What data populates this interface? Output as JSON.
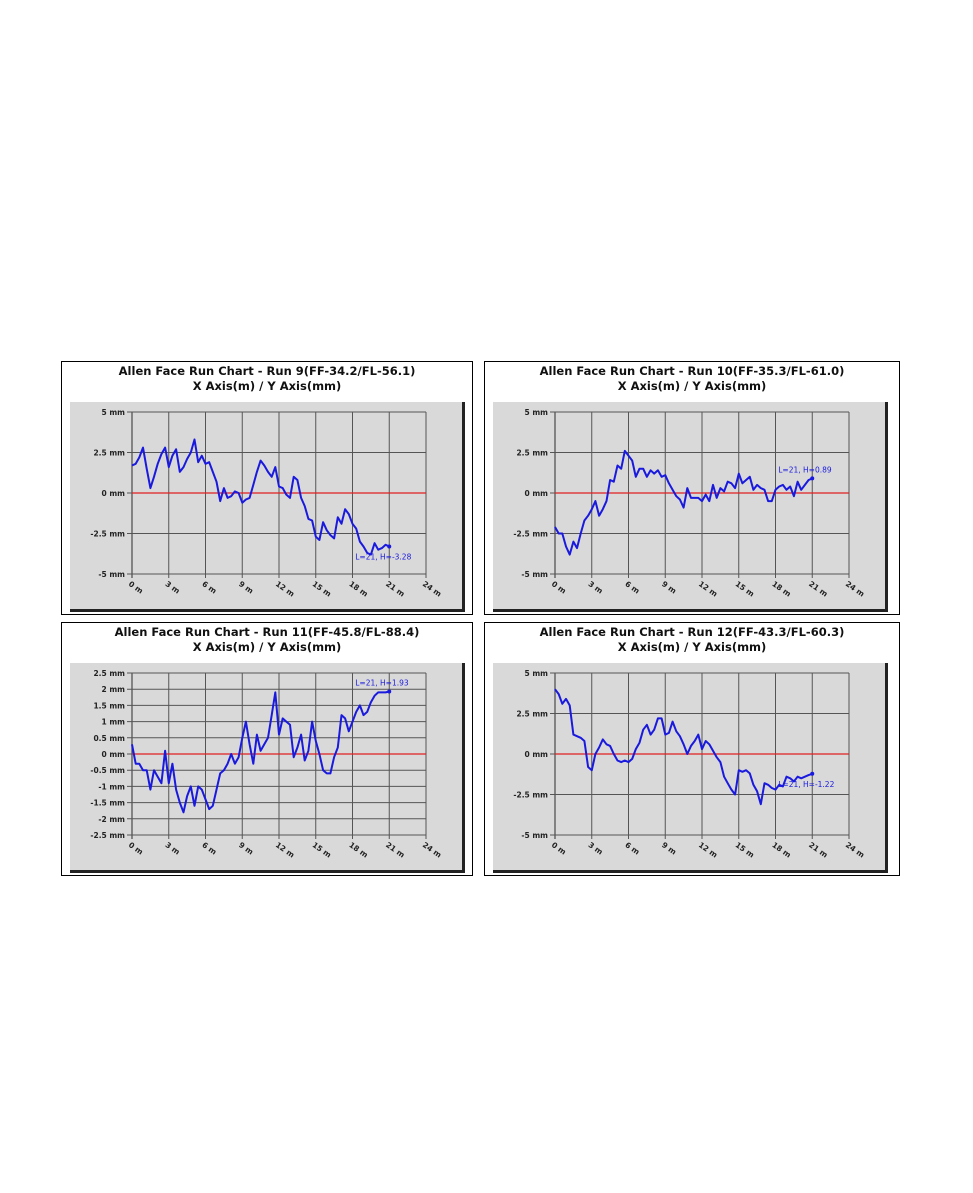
{
  "colors": {
    "series": "#1a1adf",
    "zero_line": "#e02020",
    "grid": "#555555",
    "plot_bg": "#d9d9d9"
  },
  "charts": [
    {
      "title_line1": "Allen Face Run Chart - Run 9(FF-34.2/FL-56.1)",
      "title_line2": "X Axis(m) / Y Axis(mm)"
    },
    {
      "title_line1": "Allen Face Run Chart - Run 10(FF-35.3/FL-61.0)",
      "title_line2": "X Axis(m) / Y Axis(mm)"
    },
    {
      "title_line1": "Allen Face Run Chart - Run 11(FF-45.8/FL-88.4)",
      "title_line2": "X Axis(m) / Y Axis(mm)"
    },
    {
      "title_line1": "Allen Face Run Chart - Run 12(FF-43.3/FL-60.3)",
      "title_line2": "X Axis(m) / Y Axis(mm)"
    }
  ],
  "chart_data": [
    {
      "type": "line",
      "title": "Allen Face Run Chart - Run 9(FF-34.2/FL-56.1)",
      "subtitle": "X Axis(m) / Y Axis(mm)",
      "xlim": [
        0,
        24
      ],
      "ylim": [
        -5,
        5
      ],
      "x_ticks": [
        "0 m",
        "3 m",
        "6 m",
        "9 m",
        "12 m",
        "15 m",
        "18 m",
        "21 m",
        "24 m"
      ],
      "y_ticks": [
        "5 mm",
        "2.5 mm",
        "0 mm",
        "-2.5 mm",
        "-5 mm"
      ],
      "annotation": "L=21, H=-3.28",
      "zero_line": 0,
      "series": [
        {
          "x": [
            0,
            0.3,
            0.6,
            0.9,
            1.2,
            1.5,
            1.8,
            2.1,
            2.4,
            2.7,
            3.0,
            3.3,
            3.6,
            3.9,
            4.2,
            4.5,
            4.8,
            5.1,
            5.4,
            5.7,
            6.0,
            6.3,
            6.6,
            6.9,
            7.2,
            7.5,
            7.8,
            8.1,
            8.4,
            8.7,
            9.0,
            9.3,
            9.6,
            9.9,
            10.2,
            10.5,
            10.8,
            11.1,
            11.4,
            11.7,
            12.0,
            12.3,
            12.6,
            12.9,
            13.2,
            13.5,
            13.8,
            14.1,
            14.4,
            14.7,
            15.0,
            15.3,
            15.6,
            15.9,
            16.2,
            16.5,
            16.8,
            17.1,
            17.4,
            17.7,
            18.0,
            18.3,
            18.6,
            18.9,
            19.2,
            19.5,
            19.8,
            20.1,
            20.4,
            20.7,
            21.0
          ],
          "y": [
            1.7,
            1.8,
            2.2,
            2.8,
            1.5,
            0.3,
            1.0,
            1.8,
            2.4,
            2.8,
            1.6,
            2.3,
            2.7,
            1.3,
            1.6,
            2.1,
            2.5,
            3.3,
            1.9,
            2.3,
            1.8,
            1.9,
            1.3,
            0.7,
            -0.5,
            0.3,
            -0.3,
            -0.2,
            0.1,
            0.0,
            -0.6,
            -0.4,
            -0.3,
            0.5,
            1.3,
            2.0,
            1.7,
            1.3,
            1.0,
            1.6,
            0.4,
            0.3,
            -0.1,
            -0.3,
            1.0,
            0.8,
            -0.3,
            -0.8,
            -1.6,
            -1.7,
            -2.7,
            -2.9,
            -1.8,
            -2.3,
            -2.6,
            -2.8,
            -1.5,
            -1.9,
            -1.0,
            -1.3,
            -1.9,
            -2.2,
            -3.0,
            -3.3,
            -3.7,
            -3.8,
            -3.1,
            -3.5,
            -3.4,
            -3.2,
            -3.3
          ]
        }
      ]
    },
    {
      "type": "line",
      "title": "Allen Face Run Chart - Run 10(FF-35.3/FL-61.0)",
      "subtitle": "X Axis(m) / Y Axis(mm)",
      "xlim": [
        0,
        24
      ],
      "ylim": [
        -5,
        5
      ],
      "x_ticks": [
        "0 m",
        "3 m",
        "6 m",
        "9 m",
        "12 m",
        "15 m",
        "18 m",
        "21 m",
        "24 m"
      ],
      "y_ticks": [
        "5 mm",
        "2.5 mm",
        "0 mm",
        "-2.5 mm",
        "-5 mm"
      ],
      "annotation": "L=21, H=0.89",
      "zero_line": 0,
      "series": [
        {
          "x": [
            0,
            0.3,
            0.6,
            0.9,
            1.2,
            1.5,
            1.8,
            2.1,
            2.4,
            2.7,
            3.0,
            3.3,
            3.6,
            3.9,
            4.2,
            4.5,
            4.8,
            5.1,
            5.4,
            5.7,
            6.0,
            6.3,
            6.6,
            6.9,
            7.2,
            7.5,
            7.8,
            8.1,
            8.4,
            8.7,
            9.0,
            9.3,
            9.6,
            9.9,
            10.2,
            10.5,
            10.8,
            11.1,
            11.4,
            11.7,
            12.0,
            12.3,
            12.6,
            12.9,
            13.2,
            13.5,
            13.8,
            14.1,
            14.4,
            14.7,
            15.0,
            15.3,
            15.6,
            15.9,
            16.2,
            16.5,
            16.8,
            17.1,
            17.4,
            17.7,
            18.0,
            18.3,
            18.6,
            18.9,
            19.2,
            19.5,
            19.8,
            20.1,
            20.4,
            20.7,
            21.0
          ],
          "y": [
            -2.1,
            -2.5,
            -2.5,
            -3.3,
            -3.8,
            -3.0,
            -3.4,
            -2.5,
            -1.7,
            -1.4,
            -1.0,
            -0.5,
            -1.4,
            -1.0,
            -0.5,
            0.8,
            0.7,
            1.7,
            1.5,
            2.6,
            2.3,
            2.0,
            1.0,
            1.5,
            1.5,
            1.0,
            1.4,
            1.2,
            1.4,
            1.0,
            1.1,
            0.6,
            0.2,
            -0.2,
            -0.4,
            -0.9,
            0.3,
            -0.3,
            -0.3,
            -0.3,
            -0.5,
            -0.1,
            -0.5,
            0.5,
            -0.3,
            0.3,
            0.1,
            0.7,
            0.6,
            0.3,
            1.2,
            0.6,
            0.8,
            1.0,
            0.2,
            0.5,
            0.3,
            0.2,
            -0.5,
            -0.5,
            0.2,
            0.4,
            0.5,
            0.2,
            0.4,
            -0.2,
            0.7,
            0.2,
            0.5,
            0.8,
            0.9
          ]
        }
      ]
    },
    {
      "type": "line",
      "title": "Allen Face Run Chart - Run 11(FF-45.8/FL-88.4)",
      "subtitle": "X Axis(m) / Y Axis(mm)",
      "xlim": [
        0,
        24
      ],
      "ylim": [
        -2.5,
        2.5
      ],
      "x_ticks": [
        "0 m",
        "3 m",
        "6 m",
        "9 m",
        "12 m",
        "15 m",
        "18 m",
        "21 m",
        "24 m"
      ],
      "y_ticks": [
        "2.5 mm",
        "2 mm",
        "1.5 mm",
        "1 mm",
        "0.5 mm",
        "0 mm",
        "-0.5 mm",
        "-1 mm",
        "-1.5 mm",
        "-2 mm",
        "-2.5 mm"
      ],
      "annotation": "L=21, H=1.93",
      "zero_line": 0,
      "series": [
        {
          "x": [
            0,
            0.3,
            0.6,
            0.9,
            1.2,
            1.5,
            1.8,
            2.1,
            2.4,
            2.7,
            3.0,
            3.3,
            3.6,
            3.9,
            4.2,
            4.5,
            4.8,
            5.1,
            5.4,
            5.7,
            6.0,
            6.3,
            6.6,
            6.9,
            7.2,
            7.5,
            7.8,
            8.1,
            8.4,
            8.7,
            9.0,
            9.3,
            9.6,
            9.9,
            10.2,
            10.5,
            10.8,
            11.1,
            11.4,
            11.7,
            12.0,
            12.3,
            12.6,
            12.9,
            13.2,
            13.5,
            13.8,
            14.1,
            14.4,
            14.7,
            15.0,
            15.3,
            15.6,
            15.9,
            16.2,
            16.5,
            16.8,
            17.1,
            17.4,
            17.7,
            18.0,
            18.3,
            18.6,
            18.9,
            19.2,
            19.5,
            19.8,
            20.1,
            20.4,
            20.7,
            21.0
          ],
          "y": [
            0.3,
            -0.3,
            -0.3,
            -0.5,
            -0.5,
            -1.1,
            -0.5,
            -0.7,
            -0.9,
            0.1,
            -0.9,
            -0.3,
            -1.1,
            -1.5,
            -1.8,
            -1.3,
            -1.0,
            -1.6,
            -1.0,
            -1.1,
            -1.4,
            -1.7,
            -1.6,
            -1.1,
            -0.6,
            -0.5,
            -0.3,
            0.0,
            -0.3,
            -0.1,
            0.5,
            1.0,
            0.3,
            -0.3,
            0.6,
            0.1,
            0.3,
            0.5,
            1.2,
            1.9,
            0.6,
            1.1,
            1.0,
            0.9,
            -0.1,
            0.2,
            0.6,
            -0.2,
            0.1,
            1.0,
            0.4,
            0.0,
            -0.5,
            -0.6,
            -0.6,
            -0.1,
            0.2,
            1.2,
            1.1,
            0.7,
            1.0,
            1.3,
            1.5,
            1.2,
            1.3,
            1.6,
            1.8,
            1.9,
            1.9,
            1.9,
            1.93
          ]
        }
      ]
    },
    {
      "type": "line",
      "title": "Allen Face Run Chart - Run 12(FF-43.3/FL-60.3)",
      "subtitle": "X Axis(m) / Y Axis(mm)",
      "xlim": [
        0,
        24
      ],
      "ylim": [
        -5,
        5
      ],
      "x_ticks": [
        "0 m",
        "3 m",
        "6 m",
        "9 m",
        "12 m",
        "15 m",
        "18 m",
        "21 m",
        "24 m"
      ],
      "y_ticks": [
        "5 mm",
        "2.5 mm",
        "0 mm",
        "-2.5 mm",
        "-5 mm"
      ],
      "annotation": "L=21, H=-1.22",
      "zero_line": 0,
      "series": [
        {
          "x": [
            0,
            0.3,
            0.6,
            0.9,
            1.2,
            1.5,
            1.8,
            2.1,
            2.4,
            2.7,
            3.0,
            3.3,
            3.6,
            3.9,
            4.2,
            4.5,
            4.8,
            5.1,
            5.4,
            5.7,
            6.0,
            6.3,
            6.6,
            6.9,
            7.2,
            7.5,
            7.8,
            8.1,
            8.4,
            8.7,
            9.0,
            9.3,
            9.6,
            9.9,
            10.2,
            10.5,
            10.8,
            11.1,
            11.4,
            11.7,
            12.0,
            12.3,
            12.6,
            12.9,
            13.2,
            13.5,
            13.8,
            14.1,
            14.4,
            14.7,
            15.0,
            15.3,
            15.6,
            15.9,
            16.2,
            16.5,
            16.8,
            17.1,
            17.4,
            17.7,
            18.0,
            18.3,
            18.6,
            18.9,
            19.2,
            19.5,
            19.8,
            20.1,
            20.4,
            20.7,
            21.0
          ],
          "y": [
            4.0,
            3.7,
            3.1,
            3.4,
            3.0,
            1.2,
            1.1,
            1.0,
            0.8,
            -0.8,
            -1.0,
            0.0,
            0.4,
            0.9,
            0.6,
            0.5,
            0.0,
            -0.4,
            -0.5,
            -0.4,
            -0.5,
            -0.3,
            0.3,
            0.7,
            1.5,
            1.8,
            1.2,
            1.5,
            2.2,
            2.2,
            1.2,
            1.3,
            2.0,
            1.4,
            1.1,
            0.6,
            0.0,
            0.5,
            0.8,
            1.2,
            0.3,
            0.8,
            0.6,
            0.2,
            -0.2,
            -0.5,
            -1.4,
            -1.8,
            -2.2,
            -2.5,
            -1.0,
            -1.1,
            -1.0,
            -1.2,
            -1.9,
            -2.3,
            -3.1,
            -1.8,
            -1.9,
            -2.1,
            -2.2,
            -1.9,
            -2.0,
            -1.4,
            -1.5,
            -1.7,
            -1.4,
            -1.5,
            -1.4,
            -1.3,
            -1.22
          ]
        }
      ]
    }
  ]
}
